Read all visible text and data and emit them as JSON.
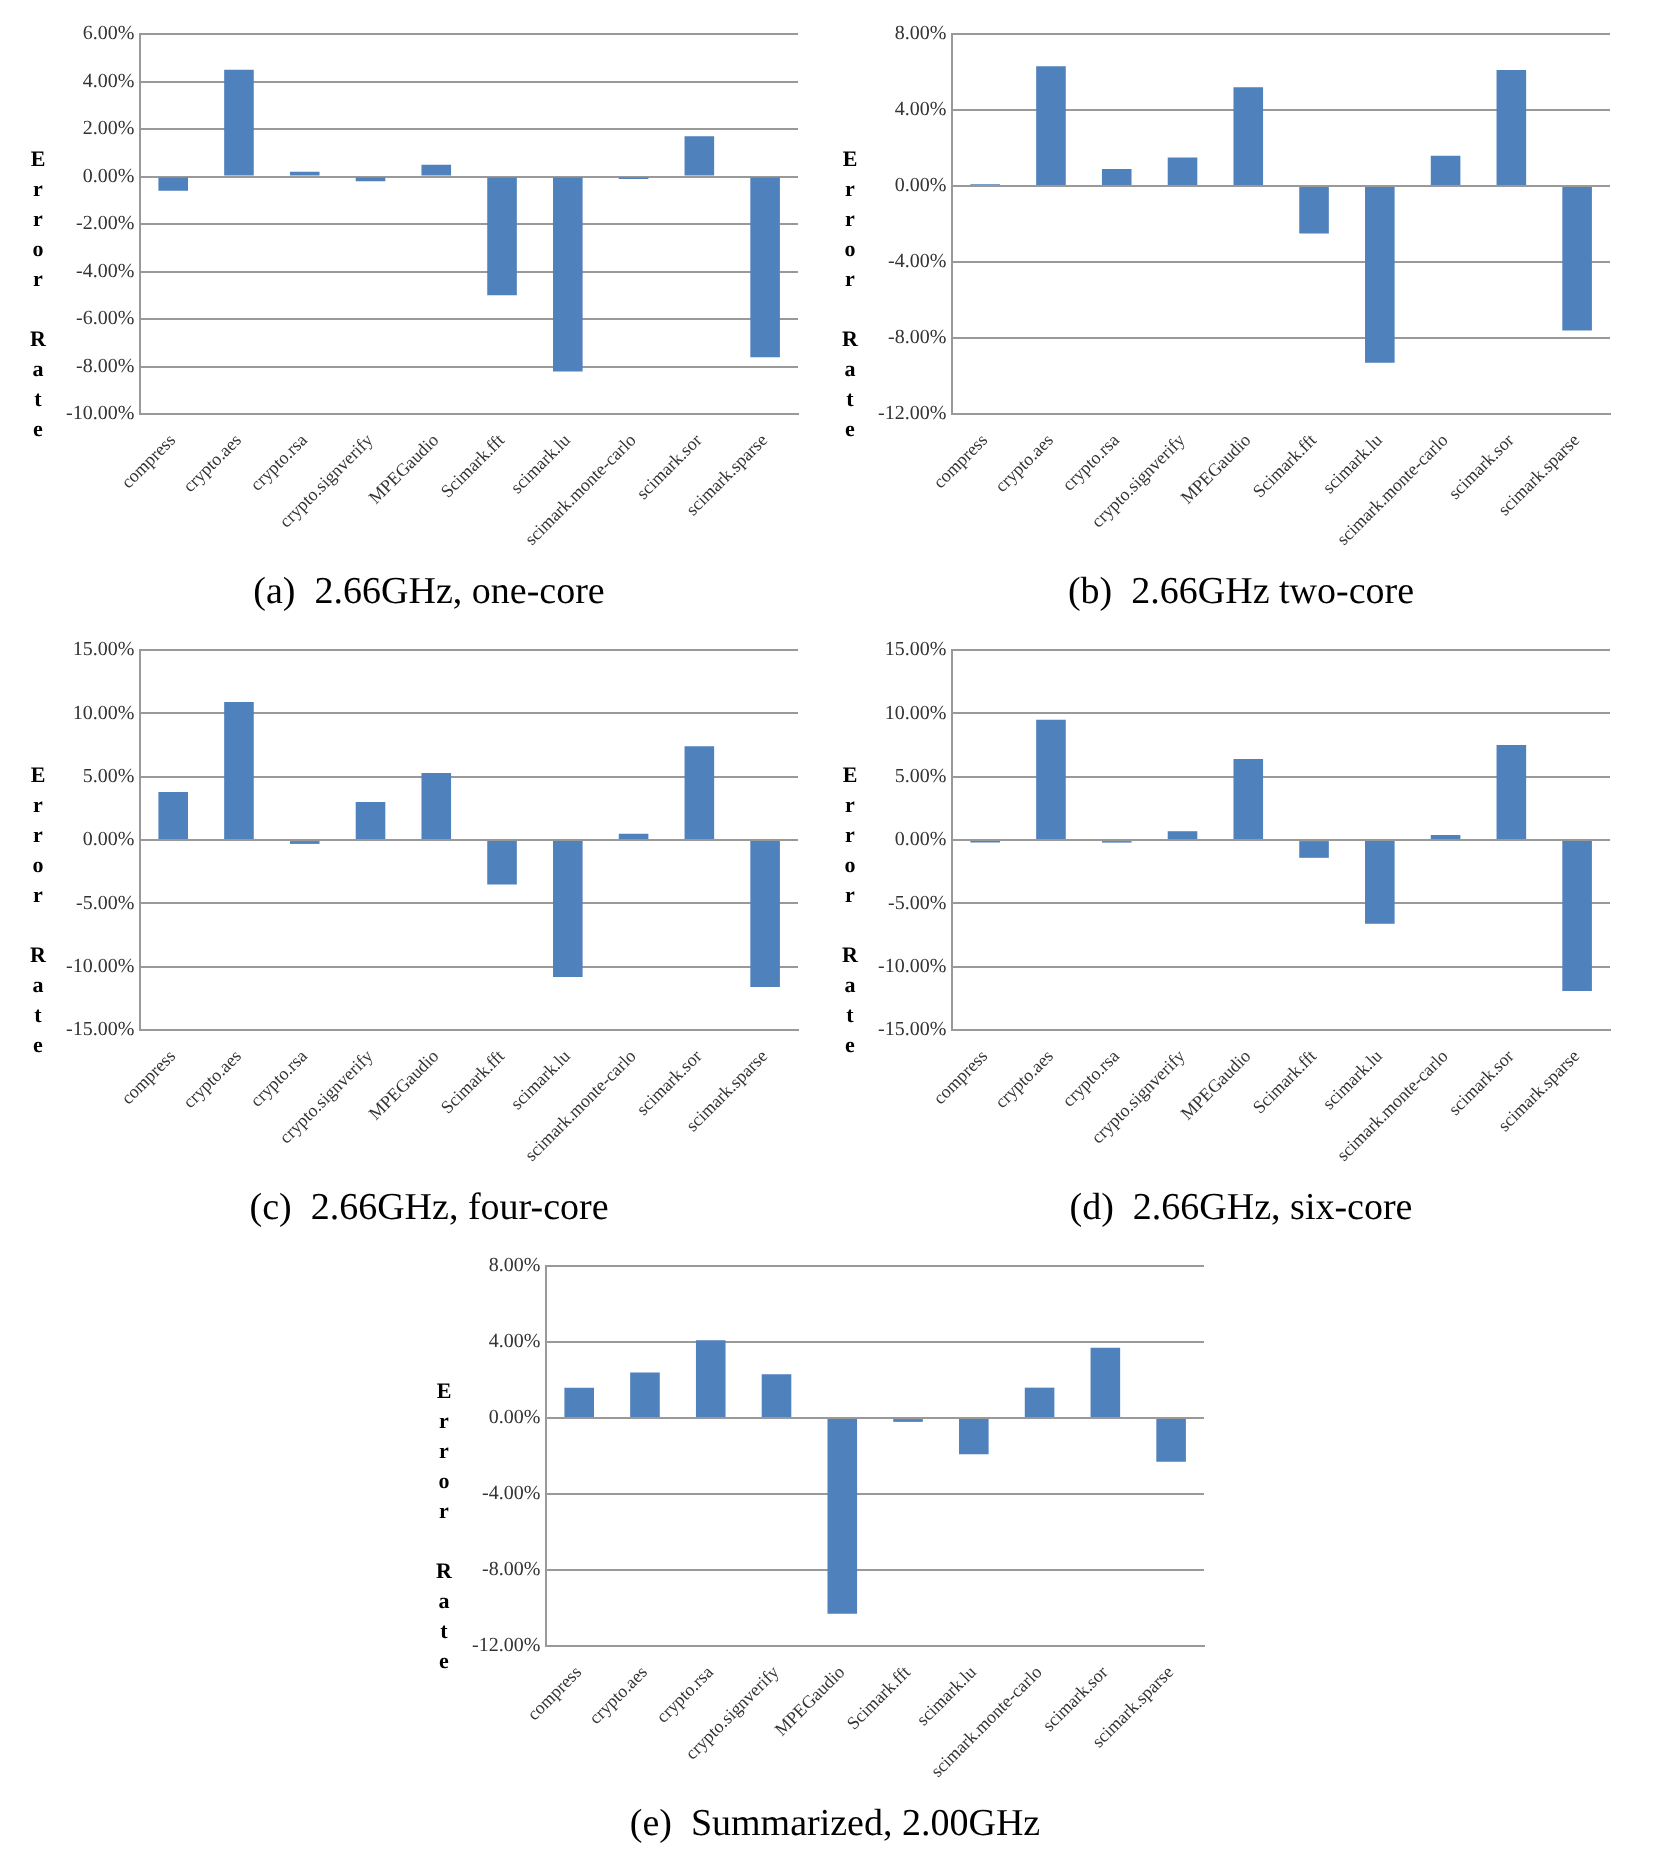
{
  "chart_data": [
    {
      "type": "bar",
      "title": "(a)  2.66GHz, one-core",
      "ylabel": "Error Rate",
      "categories": [
        "compress",
        "crypto.aes",
        "crypto.rsa",
        "crypto.signverify",
        "MPEGaudio",
        "Scimark.fft",
        "scimark.lu",
        "scimark.monte-carlo",
        "scimark.sor",
        "scimark.sparse"
      ],
      "color": "#4f81bd",
      "values": [
        -0.6,
        4.5,
        0.2,
        -0.2,
        0.5,
        -5.0,
        -8.2,
        -0.1,
        1.7,
        -7.6
      ],
      "ylim": [
        -10,
        6
      ],
      "yticks": [
        {
          "value": -10,
          "label": "-10.00%"
        },
        {
          "value": -8,
          "label": "-8.00%"
        },
        {
          "value": -6,
          "label": "-6.00%"
        },
        {
          "value": -4,
          "label": "-4.00%"
        },
        {
          "value": -2,
          "label": "-2.00%"
        },
        {
          "value": 0,
          "label": "0.00%"
        },
        {
          "value": 2,
          "label": "2.00%"
        },
        {
          "value": 4,
          "label": "4.00%"
        },
        {
          "value": 6,
          "label": "6.00%"
        }
      ],
      "grid": "y"
    },
    {
      "type": "bar",
      "title": "(b)  2.66GHz two-core",
      "ylabel": "Error Rate",
      "categories": [
        "compress",
        "crypto.aes",
        "crypto.rsa",
        "crypto.signverify",
        "MPEGaudio",
        "Scimark.fft",
        "scimark.lu",
        "scimark.monte-carlo",
        "scimark.sor",
        "scimark.sparse"
      ],
      "color": "#4f81bd",
      "values": [
        0.1,
        6.3,
        0.9,
        1.5,
        5.2,
        -2.5,
        -9.3,
        1.6,
        6.1,
        -7.6
      ],
      "ylim": [
        -12,
        8
      ],
      "yticks": [
        {
          "value": -12,
          "label": "-12.00%"
        },
        {
          "value": -8,
          "label": "-8.00%"
        },
        {
          "value": -4,
          "label": "-4.00%"
        },
        {
          "value": 0,
          "label": "0.00%"
        },
        {
          "value": 4,
          "label": "4.00%"
        },
        {
          "value": 8,
          "label": "8.00%"
        }
      ],
      "grid": "y"
    },
    {
      "type": "bar",
      "title": "(c)  2.66GHz, four-core",
      "ylabel": "Error Rate",
      "categories": [
        "compress",
        "crypto.aes",
        "crypto.rsa",
        "crypto.signverify",
        "MPEGaudio",
        "Scimark.fft",
        "scimark.lu",
        "scimark.monte-carlo",
        "scimark.sor",
        "scimark.sparse"
      ],
      "color": "#4f81bd",
      "values": [
        3.8,
        10.9,
        -0.3,
        3.0,
        5.3,
        -3.5,
        -10.8,
        0.5,
        7.4,
        -11.6
      ],
      "ylim": [
        -15,
        15
      ],
      "yticks": [
        {
          "value": -15,
          "label": "-15.00%"
        },
        {
          "value": -10,
          "label": "-10.00%"
        },
        {
          "value": -5,
          "label": "-5.00%"
        },
        {
          "value": 0,
          "label": "0.00%"
        },
        {
          "value": 5,
          "label": "5.00%"
        },
        {
          "value": 10,
          "label": "10.00%"
        },
        {
          "value": 15,
          "label": "15.00%"
        }
      ],
      "grid": "y"
    },
    {
      "type": "bar",
      "title": "(d)  2.66GHz, six-core",
      "ylabel": "Error Rate",
      "categories": [
        "compress",
        "crypto.aes",
        "crypto.rsa",
        "crypto.signverify",
        "MPEGaudio",
        "Scimark.fft",
        "scimark.lu",
        "scimark.monte-carlo",
        "scimark.sor",
        "scimark.sparse"
      ],
      "color": "#4f81bd",
      "values": [
        -0.2,
        9.5,
        -0.2,
        0.7,
        6.4,
        -1.4,
        -6.6,
        0.4,
        7.5,
        -11.9
      ],
      "ylim": [
        -15,
        15
      ],
      "yticks": [
        {
          "value": -15,
          "label": "-15.00%"
        },
        {
          "value": -10,
          "label": "-10.00%"
        },
        {
          "value": -5,
          "label": "-5.00%"
        },
        {
          "value": 0,
          "label": "0.00%"
        },
        {
          "value": 5,
          "label": "5.00%"
        },
        {
          "value": 10,
          "label": "10.00%"
        },
        {
          "value": 15,
          "label": "15.00%"
        }
      ],
      "grid": "y"
    },
    {
      "type": "bar",
      "title": "(e)  Summarized, 2.00GHz",
      "ylabel": "Error Rate",
      "categories": [
        "compress",
        "crypto.aes",
        "crypto.rsa",
        "crypto.signverify",
        "MPEGaudio",
        "Scimark.fft",
        "scimark.lu",
        "scimark.monte-carlo",
        "scimark.sor",
        "scimark.sparse"
      ],
      "color": "#4f81bd",
      "values": [
        1.6,
        2.4,
        4.1,
        2.3,
        -10.3,
        -0.2,
        -1.9,
        1.6,
        3.7,
        -2.3
      ],
      "ylim": [
        -12,
        8
      ],
      "yticks": [
        {
          "value": -12,
          "label": "-12.00%"
        },
        {
          "value": -8,
          "label": "-8.00%"
        },
        {
          "value": -4,
          "label": "-4.00%"
        },
        {
          "value": 0,
          "label": "0.00%"
        },
        {
          "value": 4,
          "label": "4.00%"
        },
        {
          "value": 8,
          "label": "8.00%"
        }
      ],
      "grid": "y"
    }
  ]
}
